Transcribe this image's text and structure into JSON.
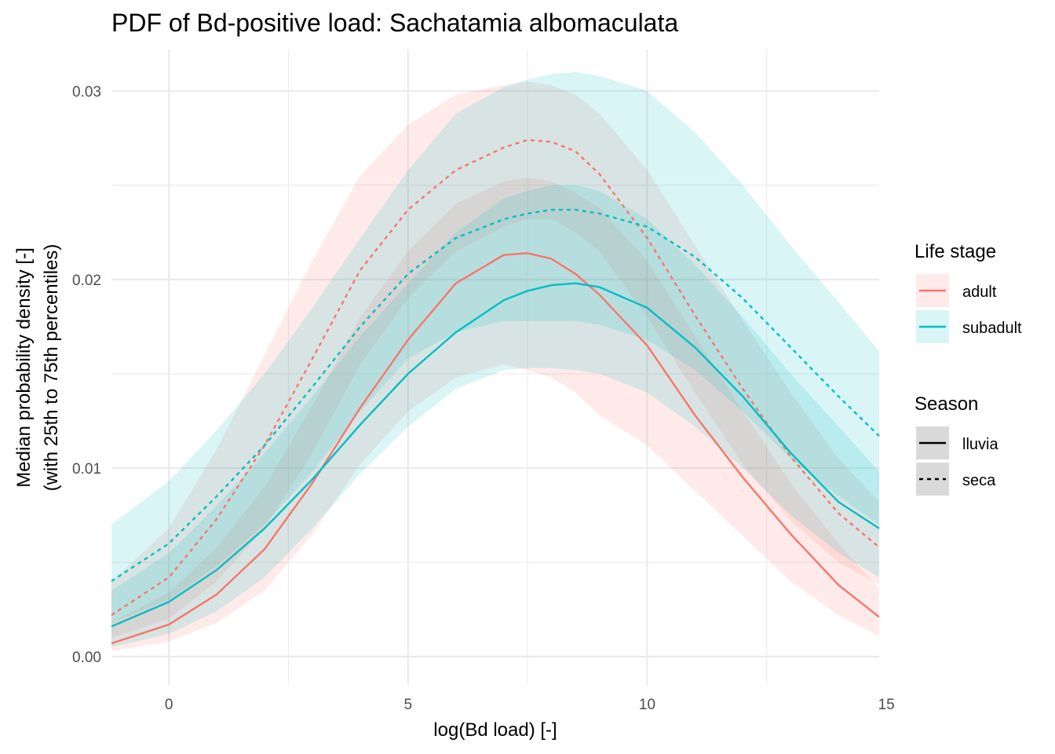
{
  "chart_data": {
    "type": "line",
    "title": "PDF of Bd-positive load: Sachatamia albomaculata",
    "xlabel": "log(Bd load) [-]",
    "ylabel": [
      "Median probability density [-]",
      "(with 25th to 75th percentiles)"
    ],
    "xlim": [
      -1.2,
      14.85
    ],
    "ylim": [
      -0.0015,
      0.0322
    ],
    "x_ticks": [
      0,
      5,
      10,
      15
    ],
    "x_tick_labels": [
      "0",
      "5",
      "10",
      "15"
    ],
    "y_ticks": [
      0.0,
      0.01,
      0.02,
      0.03
    ],
    "y_tick_labels": [
      "0.00",
      "0.01",
      "0.02",
      "0.03"
    ],
    "grid": true,
    "x": [
      -1.2,
      0,
      1,
      2,
      3,
      4,
      5,
      6,
      7,
      7.5,
      8,
      8.5,
      9,
      10,
      11,
      12,
      13,
      14,
      14.85
    ],
    "series": [
      {
        "life_stage": "adult",
        "season": "lluvia",
        "color": "#F8766D",
        "linestyle": "solid",
        "median": [
          0.0007,
          0.0017,
          0.0033,
          0.0057,
          0.0092,
          0.0132,
          0.0168,
          0.0198,
          0.0213,
          0.0214,
          0.0211,
          0.0203,
          0.0192,
          0.0165,
          0.0128,
          0.0095,
          0.0065,
          0.0038,
          0.0021
        ],
        "p25": [
          0.0003,
          0.0008,
          0.0018,
          0.0035,
          0.0065,
          0.0102,
          0.013,
          0.0148,
          0.0155,
          0.0152,
          0.0148,
          0.014,
          0.0128,
          0.0112,
          0.0088,
          0.0064,
          0.004,
          0.0022,
          0.0011
        ],
        "p75": [
          0.0018,
          0.0034,
          0.0058,
          0.009,
          0.0133,
          0.018,
          0.0215,
          0.024,
          0.0252,
          0.0254,
          0.0252,
          0.0246,
          0.0238,
          0.021,
          0.017,
          0.013,
          0.0092,
          0.006,
          0.0036
        ]
      },
      {
        "life_stage": "adult",
        "season": "seca",
        "color": "#F8766D",
        "linestyle": "dashed",
        "median": [
          0.0022,
          0.0042,
          0.0073,
          0.0112,
          0.0158,
          0.0205,
          0.0237,
          0.0258,
          0.027,
          0.0274,
          0.0273,
          0.0268,
          0.0256,
          0.0222,
          0.0181,
          0.0142,
          0.0106,
          0.0076,
          0.0058
        ],
        "p25": [
          0.001,
          0.002,
          0.004,
          0.0068,
          0.0108,
          0.0155,
          0.019,
          0.0215,
          0.0228,
          0.0232,
          0.0232,
          0.0225,
          0.0215,
          0.018,
          0.014,
          0.0102,
          0.0072,
          0.005,
          0.0038
        ],
        "p75": [
          0.004,
          0.0068,
          0.011,
          0.016,
          0.021,
          0.0255,
          0.0282,
          0.0298,
          0.0303,
          0.0305,
          0.0303,
          0.0298,
          0.0288,
          0.0258,
          0.0218,
          0.0178,
          0.014,
          0.0105,
          0.0082
        ]
      },
      {
        "life_stage": "subadult",
        "season": "lluvia",
        "color": "#00BFC4",
        "linestyle": "solid",
        "median": [
          0.0016,
          0.0029,
          0.0046,
          0.0068,
          0.0094,
          0.0123,
          0.015,
          0.0172,
          0.0189,
          0.0194,
          0.0197,
          0.0198,
          0.0196,
          0.0185,
          0.0164,
          0.0138,
          0.0108,
          0.0082,
          0.0068
        ],
        "p25": [
          0.0005,
          0.0012,
          0.0024,
          0.0042,
          0.0068,
          0.0097,
          0.0122,
          0.0142,
          0.0152,
          0.0153,
          0.0153,
          0.0152,
          0.015,
          0.014,
          0.0122,
          0.01,
          0.0075,
          0.0055,
          0.0042
        ],
        "p75": [
          0.0035,
          0.0055,
          0.008,
          0.0108,
          0.0138,
          0.017,
          0.0198,
          0.0225,
          0.0243,
          0.0247,
          0.025,
          0.025,
          0.0247,
          0.0232,
          0.0208,
          0.018,
          0.015,
          0.0122,
          0.0098
        ]
      },
      {
        "life_stage": "subadult",
        "season": "seca",
        "color": "#00BFC4",
        "linestyle": "dashed",
        "median": [
          0.004,
          0.006,
          0.0085,
          0.0112,
          0.0143,
          0.0175,
          0.0203,
          0.0222,
          0.0232,
          0.0235,
          0.0237,
          0.0237,
          0.0235,
          0.0228,
          0.0212,
          0.019,
          0.0164,
          0.0138,
          0.0117
        ],
        "p25": [
          0.0018,
          0.003,
          0.0048,
          0.007,
          0.0098,
          0.013,
          0.0158,
          0.0172,
          0.0178,
          0.0178,
          0.0178,
          0.0178,
          0.0176,
          0.0168,
          0.0152,
          0.013,
          0.0105,
          0.0085,
          0.007
        ],
        "p75": [
          0.007,
          0.0093,
          0.012,
          0.015,
          0.0185,
          0.0222,
          0.0258,
          0.0288,
          0.0302,
          0.0306,
          0.0309,
          0.031,
          0.0308,
          0.03,
          0.0278,
          0.025,
          0.0218,
          0.0188,
          0.0162
        ]
      }
    ],
    "legend": {
      "position": "right",
      "life_stage": {
        "title": "Life stage",
        "entries": [
          {
            "label": "adult",
            "color": "#F8766D"
          },
          {
            "label": "subadult",
            "color": "#00BFC4"
          }
        ]
      },
      "season": {
        "title": "Season",
        "entries": [
          {
            "label": "lluvia",
            "linestyle": "solid"
          },
          {
            "label": "seca",
            "linestyle": "dashed"
          }
        ]
      }
    }
  }
}
